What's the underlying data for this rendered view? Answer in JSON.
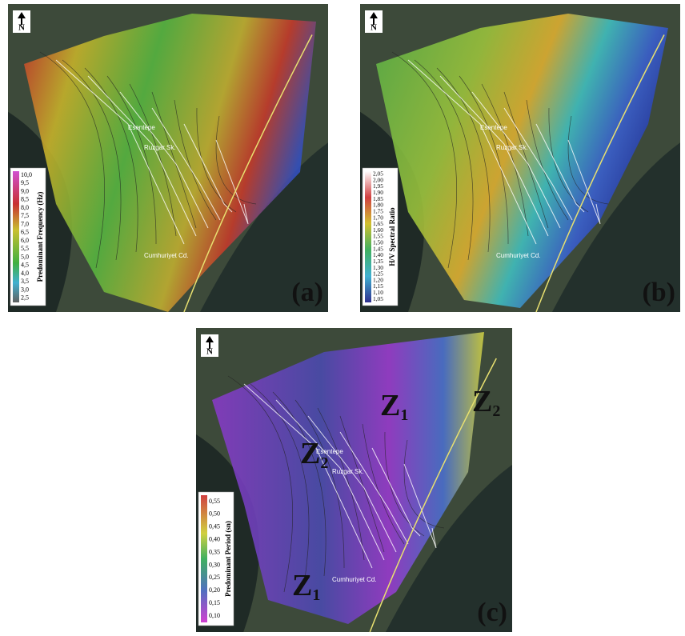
{
  "panels": [
    {
      "label": "(a)",
      "legend": {
        "title": "Predominant Frequency (Hz)",
        "values": [
          "10,0",
          "9,5",
          "9,0",
          "8,5",
          "8,0",
          "7,5",
          "7,0",
          "6,5",
          "6,0",
          "5,5",
          "5,0",
          "4,5",
          "4,0",
          "3,5",
          "3,0",
          "2,5"
        ]
      },
      "streets": [
        "Esentepe",
        "Ruzgar Sk.",
        "Cumhuriyet Cd."
      ],
      "north": "N",
      "zones": []
    },
    {
      "label": "(b)",
      "legend": {
        "title": "H/V Spectral Ratio",
        "values": [
          "2,05",
          "2,00",
          "1,95",
          "1,90",
          "1,85",
          "1,80",
          "1,75",
          "1,70",
          "1,65",
          "1,60",
          "1,55",
          "1,50",
          "1,45",
          "1,40",
          "1,35",
          "1,30",
          "1,25",
          "1,20",
          "1,15",
          "1,10",
          "1,05"
        ]
      },
      "streets": [
        "Esentepe",
        "Ruzgar Sk.",
        "Cumhuriyet Cd."
      ],
      "north": "N",
      "zones": []
    },
    {
      "label": "(c)",
      "legend": {
        "title": "Predominant Period (sn)",
        "values": [
          "0,55",
          "0,50",
          "0,45",
          "0,40",
          "0,35",
          "0,30",
          "0,25",
          "0,20",
          "0,15",
          "0,10"
        ]
      },
      "streets": [
        "Esentepe",
        "Ruzgar Sk.",
        "Cumhuriyet Cd."
      ],
      "north": "N",
      "zones": [
        {
          "letter": "Z",
          "sub": "1"
        },
        {
          "letter": "Z",
          "sub": "2"
        },
        {
          "letter": "Z",
          "sub": "2"
        },
        {
          "letter": "Z",
          "sub": "1"
        }
      ]
    }
  ]
}
